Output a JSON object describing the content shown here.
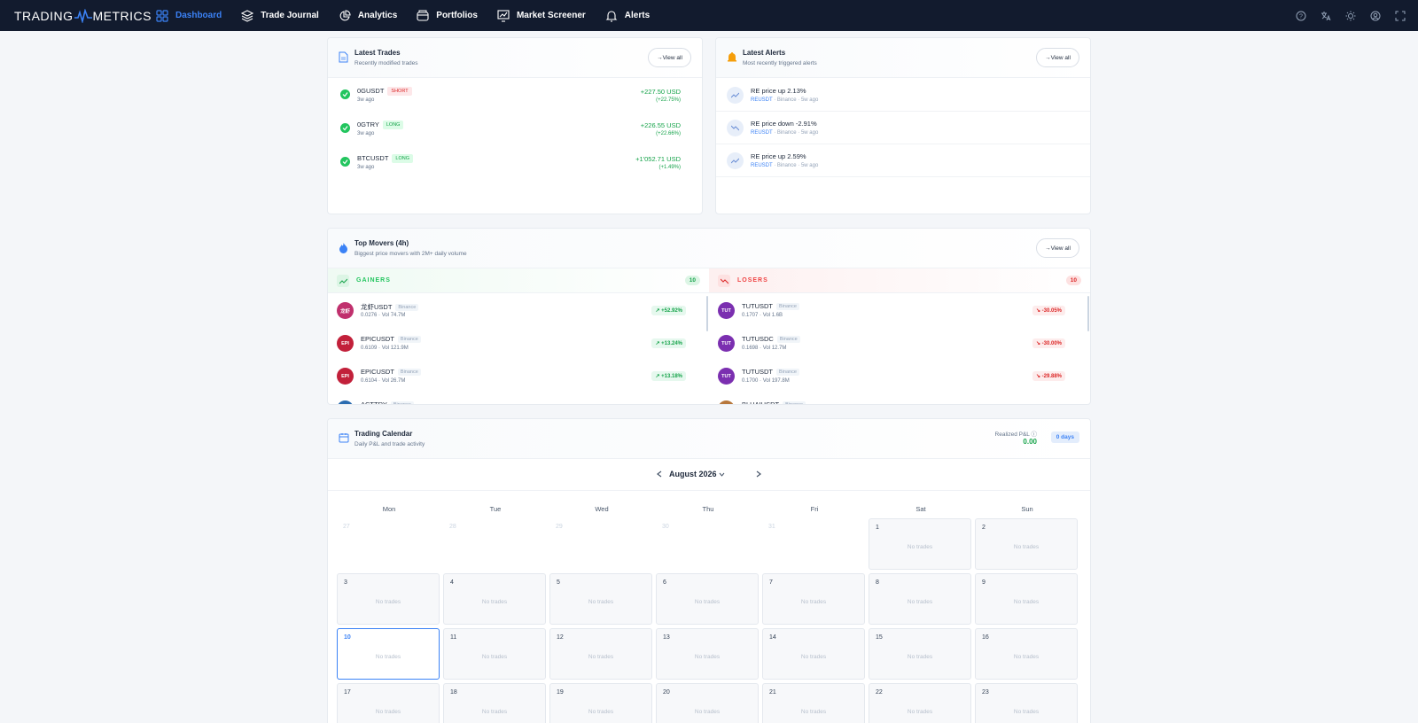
{
  "brand": {
    "left": "TRADING",
    "right": "METRICS"
  },
  "nav": [
    {
      "label": "Dashboard",
      "icon": "grid-icon",
      "active": true
    },
    {
      "label": "Trade Journal",
      "icon": "layers-icon"
    },
    {
      "label": "Analytics",
      "icon": "pie-chart-icon"
    },
    {
      "label": "Portfolios",
      "icon": "wallet-icon"
    },
    {
      "label": "Market Screener",
      "icon": "screen-chart-icon"
    },
    {
      "label": "Alerts",
      "icon": "bell-icon"
    }
  ],
  "latest_trades": {
    "title": "Latest Trades",
    "subtitle": "Recently modified trades",
    "view_all": "View all",
    "rows": [
      {
        "symbol": "0GUSDT",
        "side": "SHORT",
        "time": "3w ago",
        "pnl": "+227.50 USD",
        "pct": "(+22.75%)"
      },
      {
        "symbol": "0GTRY",
        "side": "LONG",
        "time": "3w ago",
        "pnl": "+226.55 USD",
        "pct": "(+22.66%)"
      },
      {
        "symbol": "BTCUSDT",
        "side": "LONG",
        "time": "3w ago",
        "pnl": "+1'052.71 USD",
        "pct": "(+1.49%)"
      }
    ]
  },
  "latest_alerts": {
    "title": "Latest Alerts",
    "subtitle": "Most recently triggered alerts",
    "view_all": "View all",
    "rows": [
      {
        "title": "RE price up 2.13%",
        "symbol": "REUSDT",
        "exchange": "Binance",
        "time": "5w ago",
        "dir": "up"
      },
      {
        "title": "RE price down -2.91%",
        "symbol": "REUSDT",
        "exchange": "Binance",
        "time": "5w ago",
        "dir": "down"
      },
      {
        "title": "RE price up 2.59%",
        "symbol": "REUSDT",
        "exchange": "Binance",
        "time": "5w ago",
        "dir": "up"
      }
    ]
  },
  "top_movers": {
    "title": "Top Movers (4h)",
    "subtitle": "Biggest price movers with 2M+ daily volume",
    "view_all": "View all",
    "gainers_label": "GAINERS",
    "gainers_count": "10",
    "losers_label": "LOSERS",
    "losers_count": "10",
    "gainers": [
      {
        "avatar": "龙虾",
        "symbol": "龙虾USDT",
        "exchange": "Binance",
        "price": "0.0276",
        "vol": "Vol 74.7M",
        "change": "+52.92%",
        "color": "#c0306d"
      },
      {
        "avatar": "EPI",
        "symbol": "EPICUSDT",
        "exchange": "Binance",
        "price": "0.6109",
        "vol": "Vol 121.9M",
        "change": "+13.24%",
        "color": "#c2203a"
      },
      {
        "avatar": "EPI",
        "symbol": "EPICUSDT",
        "exchange": "Binance",
        "price": "0.6104",
        "vol": "Vol 26.7M",
        "change": "+13.18%",
        "color": "#c2203a"
      },
      {
        "avatar": "",
        "symbol": "ACTTRY",
        "exchange": "Binance",
        "price": "",
        "vol": "",
        "change": "",
        "color": "#2b6cb0"
      }
    ],
    "losers": [
      {
        "avatar": "TUT",
        "symbol": "TUTUSDT",
        "exchange": "Binance",
        "price": "0.1707",
        "vol": "Vol 1.6B",
        "change": "-30.05%",
        "color": "#7b2fb0"
      },
      {
        "avatar": "TUT",
        "symbol": "TUTUSDC",
        "exchange": "Binance",
        "price": "0.1698",
        "vol": "Vol 12.7M",
        "change": "-30.00%",
        "color": "#7b2fb0"
      },
      {
        "avatar": "TUT",
        "symbol": "TUTUSDT",
        "exchange": "Binance",
        "price": "0.1700",
        "vol": "Vol 197.8M",
        "change": "-29.88%",
        "color": "#7b2fb0"
      },
      {
        "avatar": "",
        "symbol": "BLUAIUSDT",
        "exchange": "Binance",
        "price": "",
        "vol": "",
        "change": "",
        "color": "#b7773b"
      }
    ]
  },
  "calendar": {
    "title": "Trading Calendar",
    "subtitle": "Daily P&L and trade activity",
    "pnl_label": "Realized P&L",
    "pnl_value": "0.00",
    "days_pill": "0 days",
    "month": "August 2026",
    "weekdays": [
      "Mon",
      "Tue",
      "Wed",
      "Thu",
      "Fri",
      "Sat",
      "Sun"
    ],
    "no_trades": "No trades",
    "other_days": [
      "27",
      "28",
      "29",
      "30",
      "31"
    ],
    "days": [
      "1",
      "2",
      "3",
      "4",
      "5",
      "6",
      "7",
      "8",
      "9",
      "10",
      "11",
      "12",
      "13",
      "14",
      "15",
      "16",
      "17",
      "18",
      "19",
      "20",
      "21",
      "22",
      "23"
    ],
    "today": "10"
  }
}
